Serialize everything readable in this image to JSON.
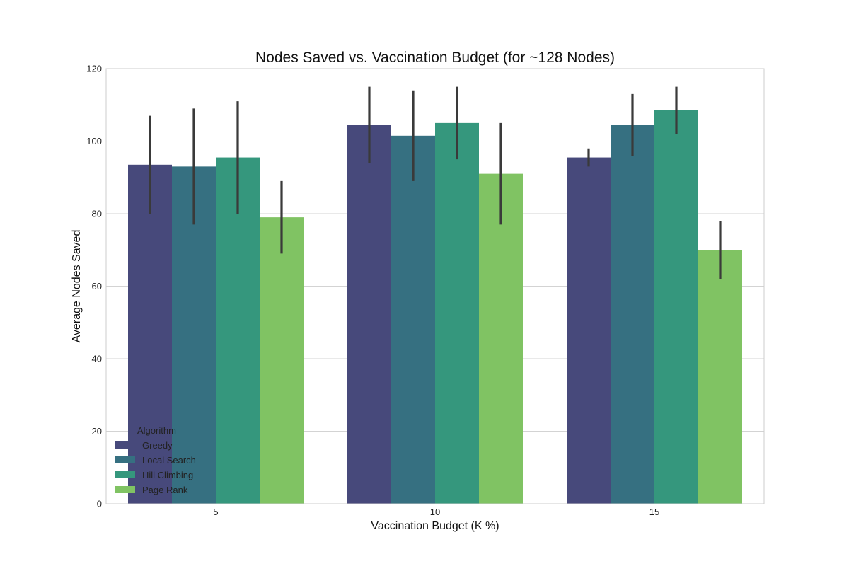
{
  "chart_data": {
    "type": "bar",
    "title": "Nodes Saved vs. Vaccination Budget (for ~128 Nodes)",
    "xlabel": "Vaccination Budget (K %)",
    "ylabel": "Average Nodes Saved",
    "categories": [
      "5",
      "10",
      "15"
    ],
    "ylim": [
      0,
      120
    ],
    "yticks": [
      0,
      20,
      40,
      60,
      80,
      100,
      120
    ],
    "grid": true,
    "legend": {
      "title": "Algorithm",
      "position": "bottom-left"
    },
    "series": [
      {
        "name": "Greedy",
        "color": "#47497b",
        "values": [
          93.5,
          104.5,
          95.5
        ],
        "err_low": [
          80,
          94,
          93
        ],
        "err_high": [
          107,
          115,
          98
        ]
      },
      {
        "name": "Local Search",
        "color": "#367081",
        "values": [
          93,
          101.5,
          104.5
        ],
        "err_low": [
          77,
          89,
          96
        ],
        "err_high": [
          109,
          114,
          113
        ]
      },
      {
        "name": "Hill Climbing",
        "color": "#35977d",
        "values": [
          95.5,
          105,
          108.5
        ],
        "err_low": [
          80,
          95,
          102
        ],
        "err_high": [
          111,
          115,
          115
        ]
      },
      {
        "name": "Page Rank",
        "color": "#80c363",
        "values": [
          79,
          91,
          70
        ],
        "err_low": [
          69,
          77,
          62
        ],
        "err_high": [
          89,
          105,
          78
        ]
      }
    ]
  }
}
